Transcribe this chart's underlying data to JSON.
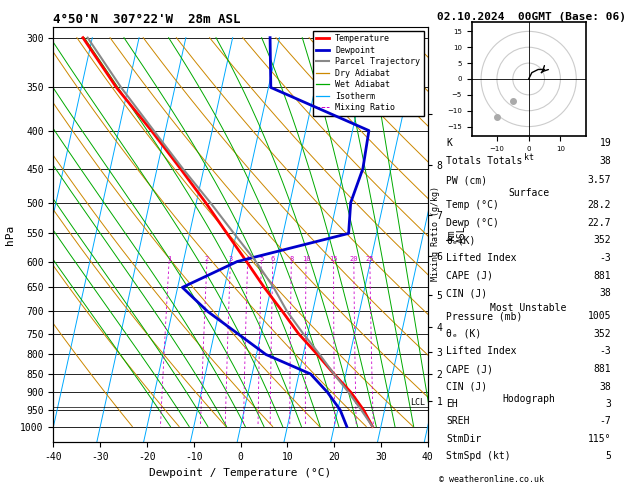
{
  "title": "4°50'N  307°22'W  28m ASL",
  "xlabel": "Dewpoint / Temperature (°C)",
  "date_str": "02.10.2024  00GMT (Base: 06)",
  "copyright": "© weatheronline.co.uk",
  "pressure_levels": [
    300,
    350,
    400,
    450,
    500,
    550,
    600,
    650,
    700,
    750,
    800,
    850,
    900,
    950,
    1000
  ],
  "temp_profile_p": [
    1000,
    950,
    900,
    850,
    800,
    750,
    700,
    650,
    600,
    550,
    500,
    450,
    400,
    350,
    300
  ],
  "temp_profile_t": [
    28.2,
    25.5,
    22.0,
    17.5,
    13.0,
    8.0,
    3.5,
    -1.5,
    -6.5,
    -12.0,
    -18.0,
    -25.0,
    -33.0,
    -42.5,
    -52.0
  ],
  "dewp_profile_p": [
    1000,
    950,
    900,
    850,
    800,
    750,
    700,
    650,
    600,
    550,
    500,
    450,
    400,
    350,
    300
  ],
  "dewp_profile_t": [
    22.7,
    20.5,
    17.0,
    12.5,
    2.0,
    -5.0,
    -12.5,
    -19.0,
    -8.5,
    14.0,
    13.0,
    14.0,
    13.5,
    -9.5,
    -12.0
  ],
  "parcel_p": [
    1000,
    950,
    900,
    850,
    800,
    750,
    700,
    650,
    600,
    550,
    500,
    450,
    400,
    350,
    300
  ],
  "parcel_t": [
    28.2,
    25.0,
    21.5,
    17.5,
    13.5,
    9.0,
    4.5,
    0.5,
    -4.5,
    -10.5,
    -17.0,
    -24.5,
    -32.5,
    -41.5,
    -51.0
  ],
  "mixing_ratio_values": [
    1,
    2,
    3,
    4,
    5,
    6,
    8,
    10,
    15,
    20,
    25
  ],
  "lcl_pressure": 940,
  "info_K": "19",
  "info_TT": "38",
  "info_PW": "3.57",
  "surf_temp": "28.2",
  "surf_dewp": "22.7",
  "surf_theta": "352",
  "surf_li": "-3",
  "surf_cape": "881",
  "surf_cin": "38",
  "mu_pres": "1005",
  "mu_theta": "352",
  "mu_li": "-3",
  "mu_cape": "881",
  "mu_cin": "38",
  "hodo_eh": "3",
  "hodo_sreh": "-7",
  "hodo_stmdir": "115°",
  "hodo_stmspd": "5",
  "col_temp": "#ff0000",
  "col_dewp": "#0000cc",
  "col_parcel": "#888888",
  "col_dry": "#cc8800",
  "col_wet": "#00aa00",
  "col_iso": "#00aaff",
  "col_mix": "#cc00cc",
  "skew_factor": 35.0,
  "xlim_lo": -40,
  "xlim_hi": 40
}
